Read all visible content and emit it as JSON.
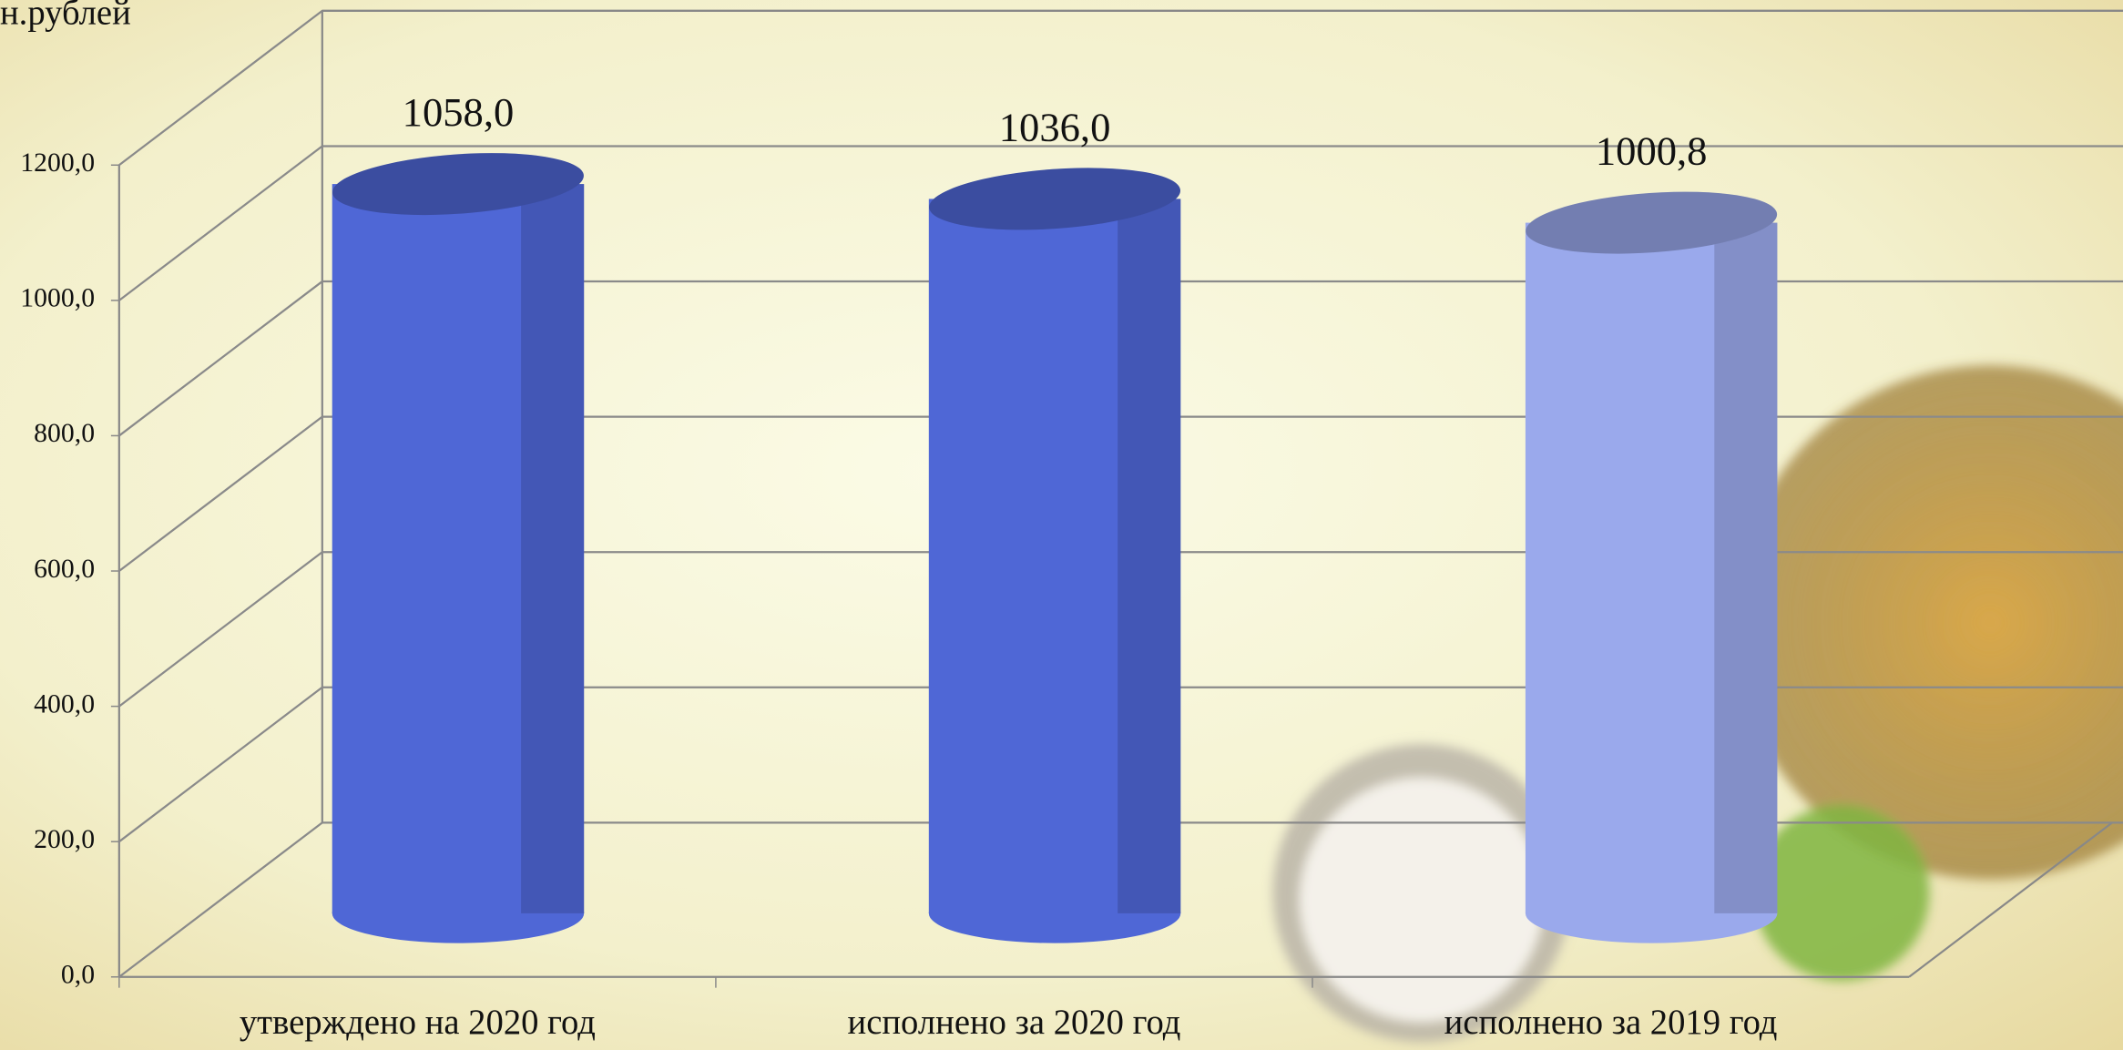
{
  "chart_data": {
    "type": "cylinder",
    "y_axis_label": "н.рублей",
    "categories": [
      "утверждено на 2020 год",
      "исполнено за 2020 год",
      "исполнено за 2019 год"
    ],
    "values": [
      1058.0,
      1036.0,
      1000.8
    ],
    "value_labels": [
      "1058,0",
      "1036,0",
      "1000,8"
    ],
    "colors": [
      "#4f67d6",
      "#4f67d6",
      "#9aa9ec"
    ],
    "ylim": [
      0,
      1200
    ],
    "yticks": [
      {
        "value": 0,
        "label": "0,0"
      },
      {
        "value": 200,
        "label": "200,0"
      },
      {
        "value": 400,
        "label": "400,0"
      },
      {
        "value": 600,
        "label": "600,0"
      },
      {
        "value": 800,
        "label": "800,0"
      },
      {
        "value": 1000,
        "label": "1000,0"
      },
      {
        "value": 1200,
        "label": "1200,0"
      }
    ],
    "grid": true
  }
}
